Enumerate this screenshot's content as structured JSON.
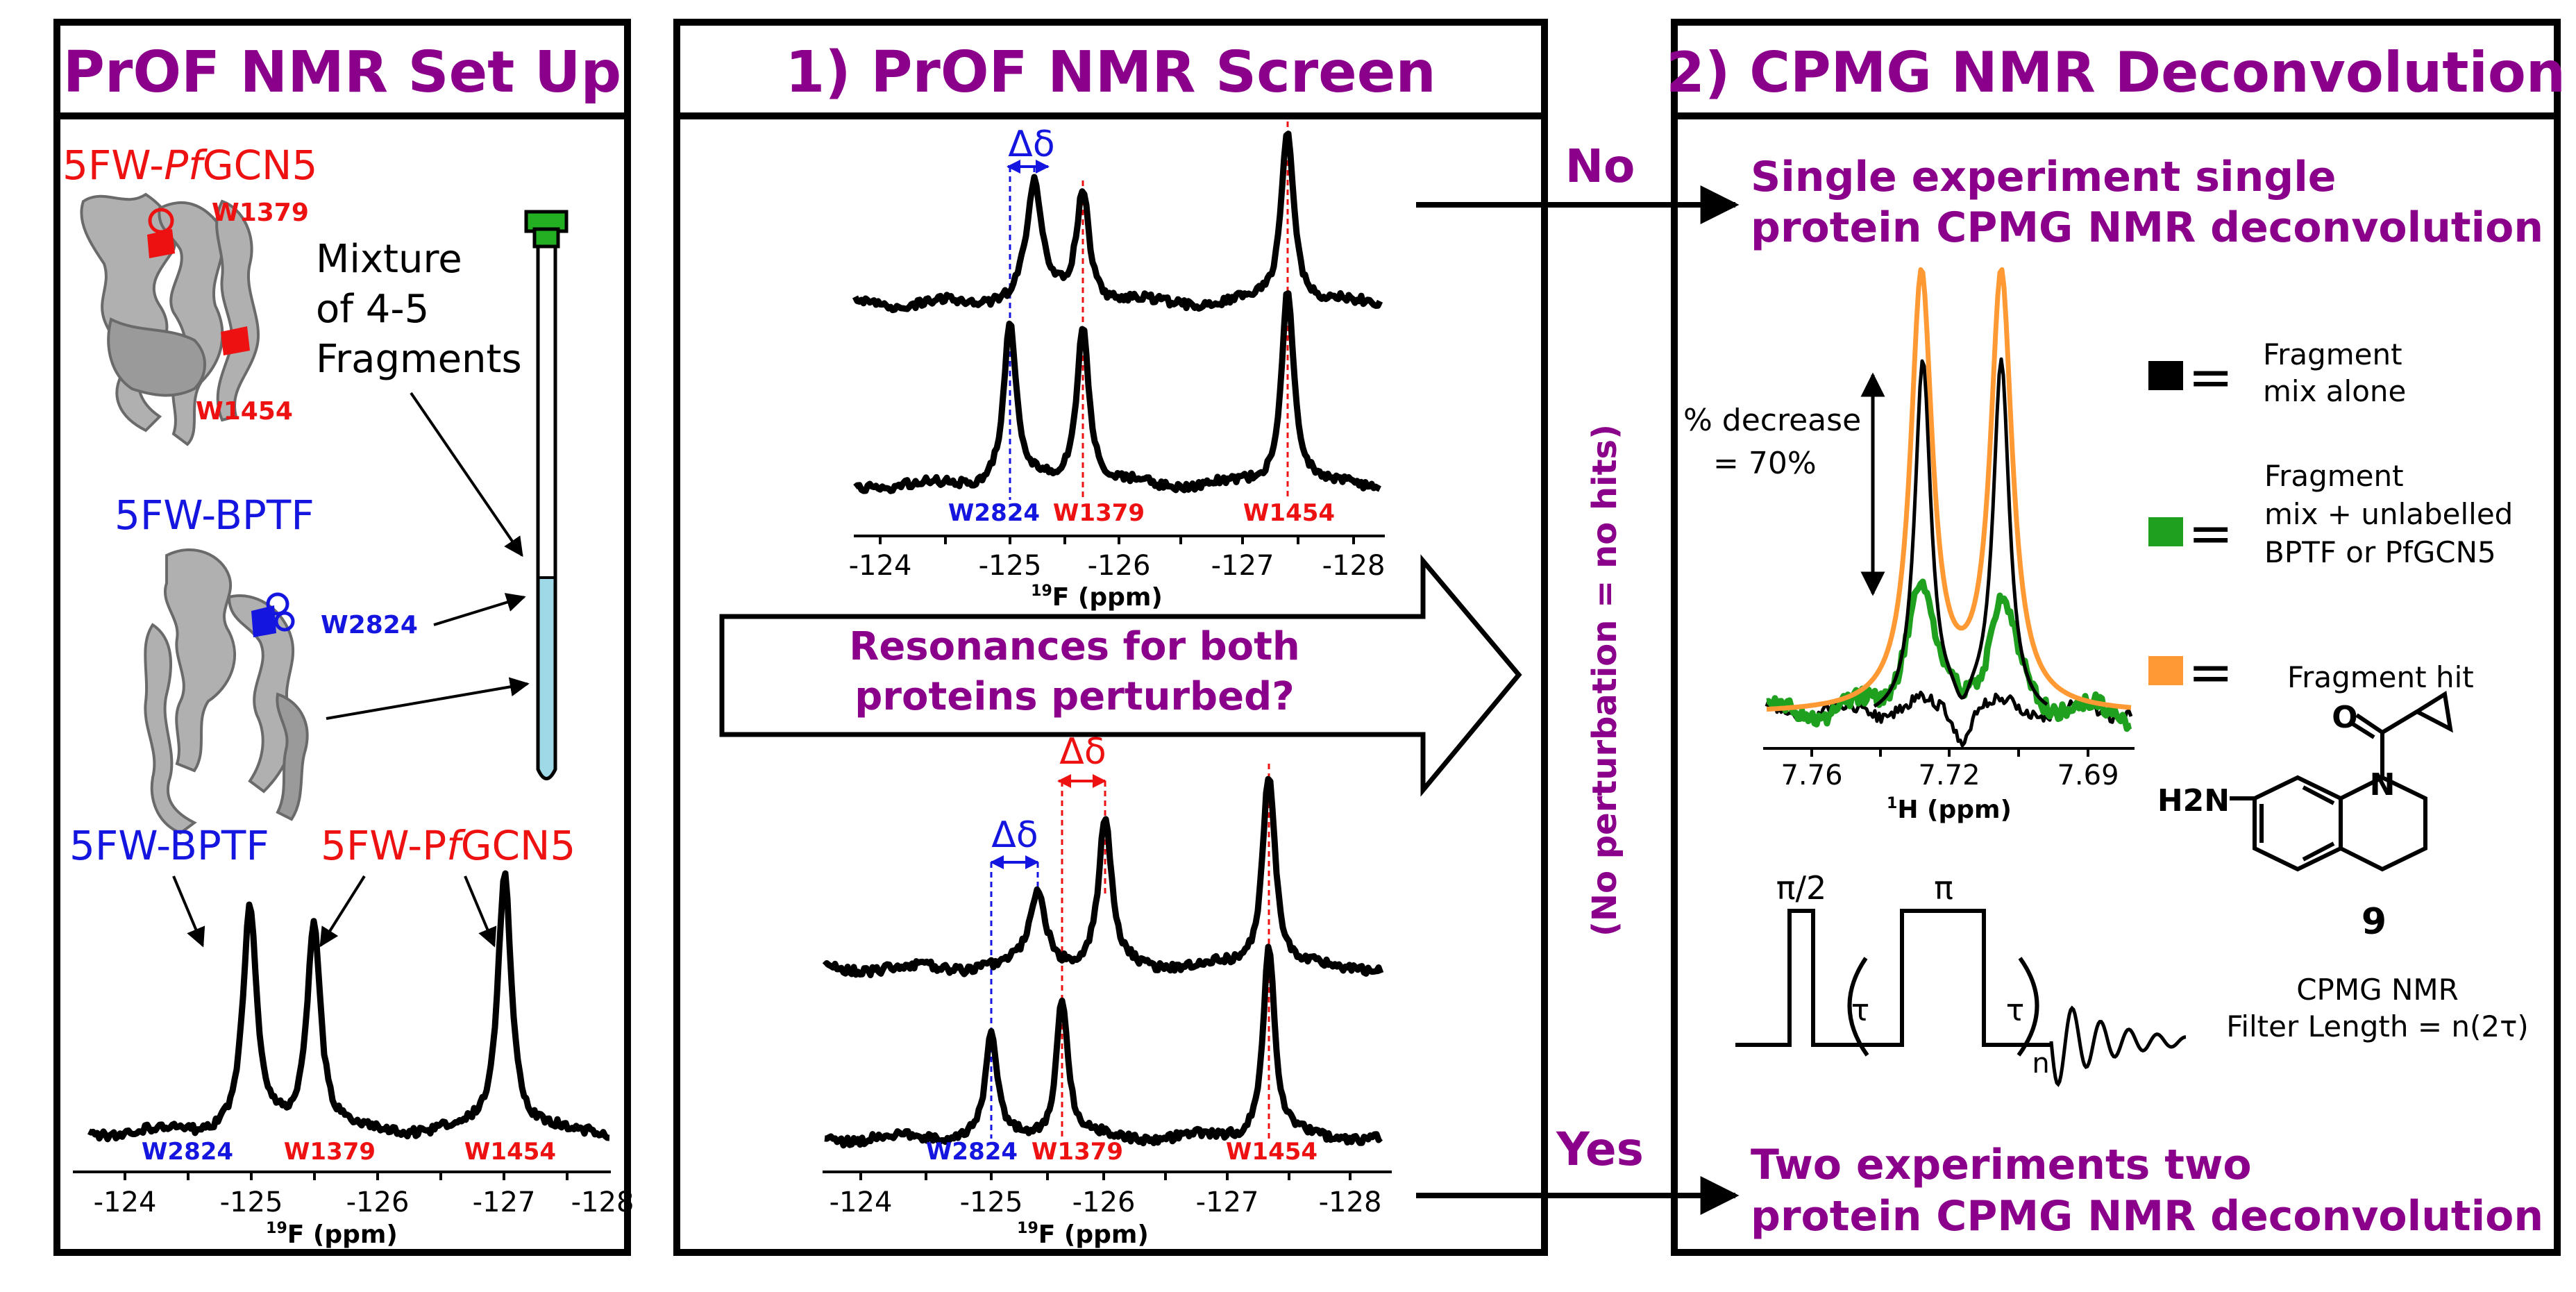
{
  "colors": {
    "purple": "#8B008B",
    "red": "#EE1111",
    "blue": "#1515E0",
    "black": "#000000",
    "green": "#1FA01F",
    "orange": "#FF9933",
    "tube_fill": "#9FD8E6",
    "cap_green": "#22B022",
    "protein_gray": "#A8A8A8"
  },
  "panel1": {
    "title": "PrOF NMR Set Up",
    "protein_a_label": "5FW-",
    "protein_a_italic": "Pf",
    "protein_a_suffix": "GCN5",
    "residue_a1": "W1379",
    "residue_a2": "W1454",
    "protein_b_label": "5FW-BPTF",
    "residue_b1": "W2824",
    "mixture_line1": "Mixture",
    "mixture_line2": "of 4-5",
    "mixture_line3": "Fragments",
    "spec_label_blue": "5FW-BPTF",
    "spec_label_red": "5FW-P",
    "spec_label_red_italic": "f",
    "spec_label_red_suffix": "GCN5",
    "peak_labels": [
      "W2824",
      "W1379",
      "W1454"
    ],
    "axis_ticks": [
      "-124",
      "-125",
      "-126",
      "-127",
      "-128"
    ],
    "axis_label_sup": "19",
    "axis_label": "F (ppm)"
  },
  "panel2": {
    "title": "1) PrOF NMR Screen",
    "delta": "Δδ",
    "peak_labels": [
      "W2824",
      "W1379",
      "W1454"
    ],
    "axis_ticks": [
      "-124",
      "-125",
      "-126",
      "-127",
      "-128"
    ],
    "axis_label_sup": "19",
    "axis_label": "F (ppm)",
    "question_line1": "Resonances for both",
    "question_line2": "proteins perturbed?"
  },
  "decision": {
    "no": "No",
    "yes": "Yes",
    "side_note": "(No perturbation = no hits)"
  },
  "panel3": {
    "title": "2) CPMG NMR Deconvolution",
    "no_result_line1": "Single experiment single",
    "no_result_line2": "protein CPMG NMR deconvolution",
    "yes_result_line1": "Two experiments two",
    "yes_result_line2": "protein CPMG NMR deconvolution",
    "percent_line1": "% decrease",
    "percent_line2": "= 70%",
    "axis_ticks": [
      "7.76",
      "7.72",
      "7.69"
    ],
    "axis_label_sup": "1",
    "axis_label": "H (ppm)",
    "legend": [
      {
        "color": "#000000",
        "lines": [
          "Fragment",
          "mix alone"
        ]
      },
      {
        "color": "#1FA01F",
        "lines": [
          "Fragment",
          "mix + unlabelled",
          "BPTF or PfGCN5"
        ]
      },
      {
        "color": "#FF9933",
        "lines": [
          "Fragment hit"
        ]
      }
    ],
    "equals": "=",
    "compound_number": "9",
    "compound_amine": "H2N",
    "compound_n": "N",
    "compound_o": "O",
    "pulse_pi2": "π/2",
    "pulse_pi": "π",
    "tau": "τ",
    "n": "n",
    "cpmg_line1": "CPMG NMR",
    "cpmg_line2": "Filter Length = n(2τ)"
  }
}
